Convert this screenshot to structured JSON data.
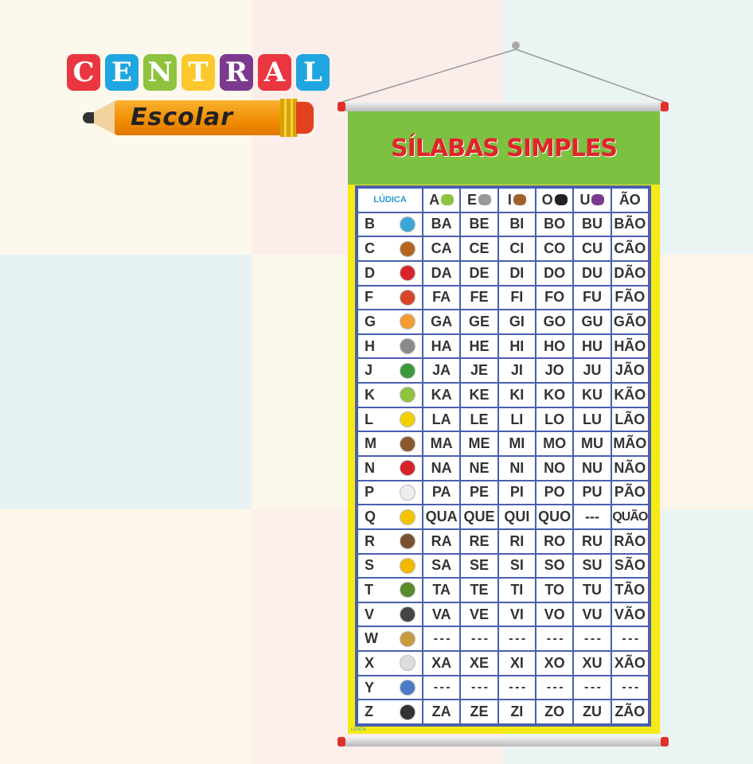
{
  "brand": {
    "letters": [
      "C",
      "E",
      "N",
      "T",
      "R",
      "A",
      "L"
    ],
    "letter_colors": [
      "#ea3640",
      "#1fa6e0",
      "#8fc23f",
      "#fbc82e",
      "#7b3a8e",
      "#ea3640",
      "#1fa6e0"
    ],
    "subtitle": "Escolar"
  },
  "poster": {
    "title": "SÍLABAS SIMPLES",
    "logo": "LÚDICA",
    "footer_logo": "LÚDICA",
    "header": [
      {
        "label": "A",
        "icon": "airplane-icon",
        "color": "#8fc23f"
      },
      {
        "label": "E",
        "icon": "elephant-icon",
        "color": "#999999"
      },
      {
        "label": "I",
        "icon": "indian-boy-icon",
        "color": "#a0622d"
      },
      {
        "label": "O",
        "icon": "glasses-icon",
        "color": "#222222"
      },
      {
        "label": "U",
        "icon": "grapes-icon",
        "color": "#7b3a8e"
      },
      {
        "label": "ÃO"
      }
    ],
    "rows": [
      {
        "letter": "B",
        "icon": "butterfly-icon",
        "color": "#3ba7d9",
        "syllables": [
          "BA",
          "BE",
          "BI",
          "BO",
          "BU",
          "BÃO"
        ]
      },
      {
        "letter": "C",
        "icon": "dog-icon",
        "color": "#b5651d",
        "syllables": [
          "CA",
          "CE",
          "CI",
          "CO",
          "CU",
          "CÃO"
        ]
      },
      {
        "letter": "D",
        "icon": "dice-icon",
        "color": "#d8232a",
        "syllables": [
          "DA",
          "DE",
          "DI",
          "DO",
          "DU",
          "DÃO"
        ]
      },
      {
        "letter": "F",
        "icon": "ant-icon",
        "color": "#d8452a",
        "syllables": [
          "FA",
          "FE",
          "FI",
          "FO",
          "FU",
          "FÃO"
        ]
      },
      {
        "letter": "G",
        "icon": "cat-icon",
        "color": "#f39c32",
        "syllables": [
          "GA",
          "GE",
          "GI",
          "GO",
          "GU",
          "GÃO"
        ]
      },
      {
        "letter": "H",
        "icon": "hippo-icon",
        "color": "#8a8a8a",
        "syllables": [
          "HA",
          "HE",
          "HI",
          "HO",
          "HU",
          "HÃO"
        ]
      },
      {
        "letter": "J",
        "icon": "alligator-icon",
        "color": "#3a9a3a",
        "syllables": [
          "JA",
          "JE",
          "JI",
          "JO",
          "JU",
          "JÃO"
        ]
      },
      {
        "letter": "K",
        "icon": "kiwi-icon",
        "color": "#8fc23f",
        "syllables": [
          "KA",
          "KE",
          "KI",
          "KO",
          "KU",
          "KÃO"
        ]
      },
      {
        "letter": "L",
        "icon": "moon-icon",
        "color": "#f5d000",
        "syllables": [
          "LA",
          "LE",
          "LI",
          "LO",
          "LU",
          "LÃO"
        ]
      },
      {
        "letter": "M",
        "icon": "monkey-icon",
        "color": "#8b5a2b",
        "syllables": [
          "MA",
          "ME",
          "MI",
          "MO",
          "MU",
          "MÃO"
        ]
      },
      {
        "letter": "N",
        "icon": "ship-icon",
        "color": "#d8232a",
        "syllables": [
          "NA",
          "NE",
          "NI",
          "NO",
          "NU",
          "NÃO"
        ]
      },
      {
        "letter": "P",
        "icon": "duck-icon",
        "color": "#eeeeee",
        "syllables": [
          "PA",
          "PE",
          "PI",
          "PO",
          "PU",
          "PÃO"
        ]
      },
      {
        "letter": "Q",
        "icon": "cheese-icon",
        "color": "#f5c400",
        "syllables": [
          "QUA",
          "QUE",
          "QUI",
          "QUO",
          "---",
          "QUÃO"
        ]
      },
      {
        "letter": "R",
        "icon": "mouse-icon",
        "color": "#7a5230",
        "syllables": [
          "RA",
          "RE",
          "RI",
          "RO",
          "RU",
          "RÃO"
        ]
      },
      {
        "letter": "S",
        "icon": "sun-icon",
        "color": "#f5b800",
        "syllables": [
          "SA",
          "SE",
          "SI",
          "SO",
          "SU",
          "SÃO"
        ]
      },
      {
        "letter": "T",
        "icon": "turtle-icon",
        "color": "#5a8a2a",
        "syllables": [
          "TA",
          "TE",
          "TI",
          "TO",
          "TU",
          "TÃO"
        ]
      },
      {
        "letter": "V",
        "icon": "cow-icon",
        "color": "#444444",
        "syllables": [
          "VA",
          "VE",
          "VI",
          "VO",
          "VU",
          "VÃO"
        ]
      },
      {
        "letter": "W",
        "icon": "waffle-icon",
        "color": "#c89a40",
        "syllables": [
          "- - -",
          "- - -",
          "- - -",
          "- - -",
          "- - -",
          "- - -"
        ]
      },
      {
        "letter": "X",
        "icon": "cup-icon",
        "color": "#dddddd",
        "syllables": [
          "XA",
          "XE",
          "XI",
          "XO",
          "XU",
          "XÃO"
        ]
      },
      {
        "letter": "Y",
        "icon": "yoga-icon",
        "color": "#4a7ac8",
        "syllables": [
          "- - -",
          "- - -",
          "- - -",
          "- - -",
          "- - -",
          "- - -"
        ]
      },
      {
        "letter": "Z",
        "icon": "zebra-icon",
        "color": "#333333",
        "syllables": [
          "ZA",
          "ZE",
          "ZI",
          "ZO",
          "ZU",
          "ZÃO"
        ]
      }
    ]
  }
}
